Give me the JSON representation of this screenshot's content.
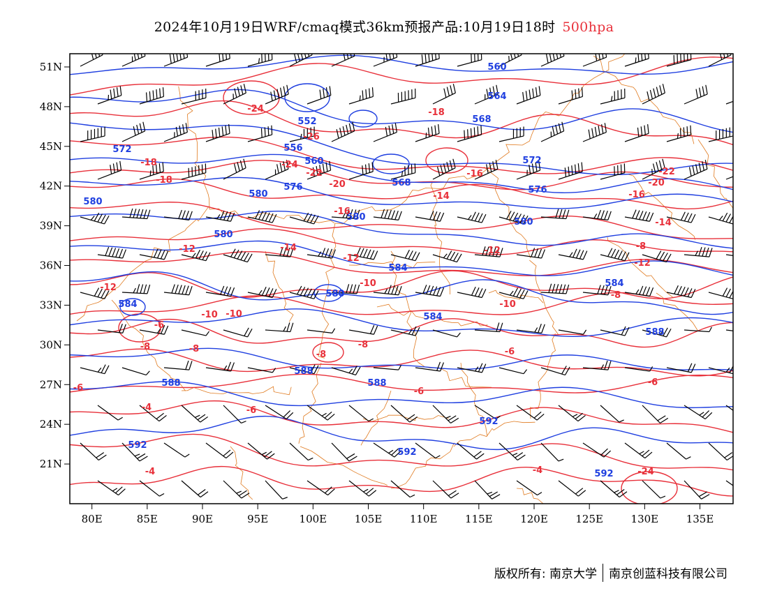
{
  "header": {
    "title": "2024年10月19日WRF/cmaq模式36km预报产品:10月19日18时",
    "level": "500hpa",
    "level_color": "#e8303a"
  },
  "map": {
    "lon_range": [
      78,
      138
    ],
    "lat_range": [
      18,
      52
    ],
    "lon_ticks": [
      "80E",
      "85E",
      "90E",
      "95E",
      "100E",
      "105E",
      "110E",
      "115E",
      "120E",
      "125E",
      "130E",
      "135E"
    ],
    "lat_ticks": [
      "21N",
      "24N",
      "27N",
      "30N",
      "33N",
      "36N",
      "39N",
      "42N",
      "45N",
      "48N",
      "51N"
    ],
    "colors": {
      "height": "#1f3fe0",
      "temperature": "#e8303a",
      "boundary": "#e07a1f",
      "barb": "#000000"
    },
    "height_labels": [
      "560",
      "564",
      "568",
      "552",
      "556",
      "560",
      "572",
      "568",
      "572",
      "576",
      "576",
      "580",
      "580",
      "580",
      "580",
      "580",
      "580",
      "584",
      "584",
      "584",
      "584",
      "588",
      "588",
      "588",
      "588",
      "592",
      "592",
      "592",
      "592"
    ],
    "temp_labels": [
      "-18",
      "-24",
      "-26",
      "-24",
      "-22",
      "-20",
      "-18",
      "-18",
      "-16",
      "-16",
      "-14",
      "-14",
      "-12",
      "-12",
      "-12",
      "-12",
      "-12",
      "-10",
      "-10",
      "-10",
      "-10",
      "-8",
      "-8",
      "-8",
      "-8",
      "-8",
      "-6",
      "-6",
      "-6",
      "-6",
      "-6",
      "-6",
      "-4",
      "-4",
      "-4",
      "-24",
      "-22",
      "-20",
      "-16",
      "-14",
      "-8"
    ]
  },
  "footer": {
    "copyright": "版权所有: 南京大学",
    "company": "南京创蓝科技有限公司"
  }
}
